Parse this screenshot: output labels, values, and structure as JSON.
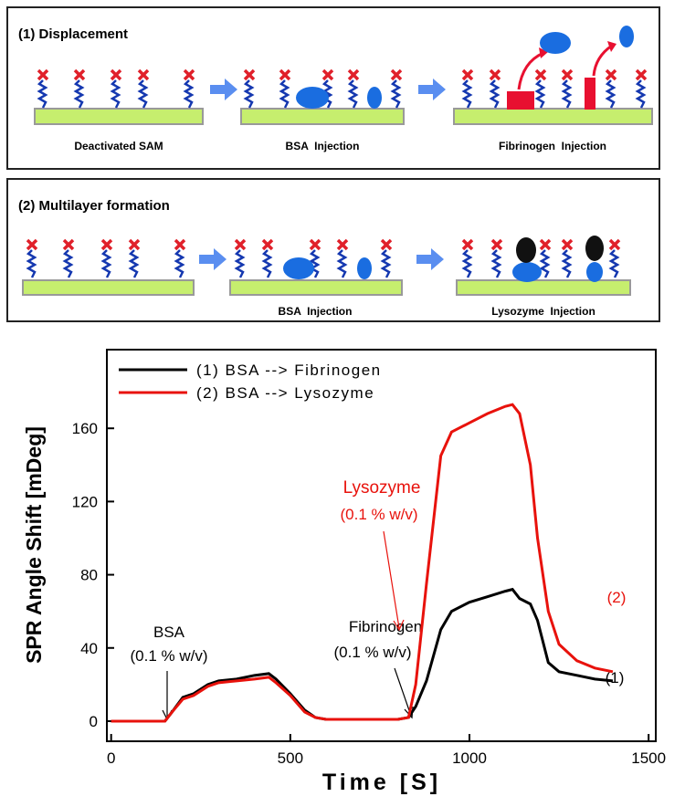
{
  "panels": [
    {
      "title": "(1) Displacement",
      "labels": [
        "Deactivated SAM",
        "BSA  Injection",
        "Fibrinogen  Injection"
      ]
    },
    {
      "title": "(2) Multilayer formation",
      "labels": [
        "BSA  Injection",
        "Lysozyme  Injection"
      ]
    }
  ],
  "chart_data": {
    "type": "line",
    "x_label": "Time [S]",
    "y_label": "SPR Angle Shift [mDeg]",
    "x": [
      0,
      150,
      170,
      200,
      230,
      270,
      300,
      350,
      400,
      440,
      460,
      500,
      540,
      570,
      600,
      700,
      800,
      830,
      850,
      880,
      920,
      950,
      1000,
      1050,
      1100,
      1120,
      1140,
      1170,
      1190,
      1220,
      1250,
      1300,
      1350,
      1400
    ],
    "series": [
      {
        "name": "(1) BSA --> Fibrinogen",
        "color": "#000000",
        "values": [
          0,
          0,
          5,
          13,
          15,
          20,
          22,
          23,
          25,
          26,
          23,
          15,
          6,
          2,
          1,
          1,
          1,
          2,
          8,
          22,
          50,
          60,
          65,
          68,
          71,
          72,
          67,
          64,
          55,
          32,
          27,
          25,
          23,
          22
        ]
      },
      {
        "name": "(2) BSA --> Lysozyme",
        "color": "#e8120c",
        "values": [
          0,
          0,
          5,
          12,
          14,
          19,
          21,
          22,
          23,
          24,
          21,
          14,
          5,
          2,
          1,
          1,
          1,
          2,
          20,
          75,
          145,
          158,
          163,
          168,
          172,
          173,
          168,
          140,
          100,
          60,
          42,
          33,
          29,
          27
        ]
      }
    ],
    "xlim": [
      -12,
      1520
    ],
    "ylim": [
      -11,
      203
    ],
    "xticks": [
      0,
      500,
      1000,
      1500
    ],
    "yticks": [
      0,
      40,
      80,
      120,
      160
    ],
    "annotations": [
      "BSA",
      "(0.1 % w/v)",
      "Fibrinogen",
      "(0.1 % w/v)",
      "Lysozyme",
      "(0.1 % w/v)",
      "(2)",
      "(1)"
    ]
  }
}
